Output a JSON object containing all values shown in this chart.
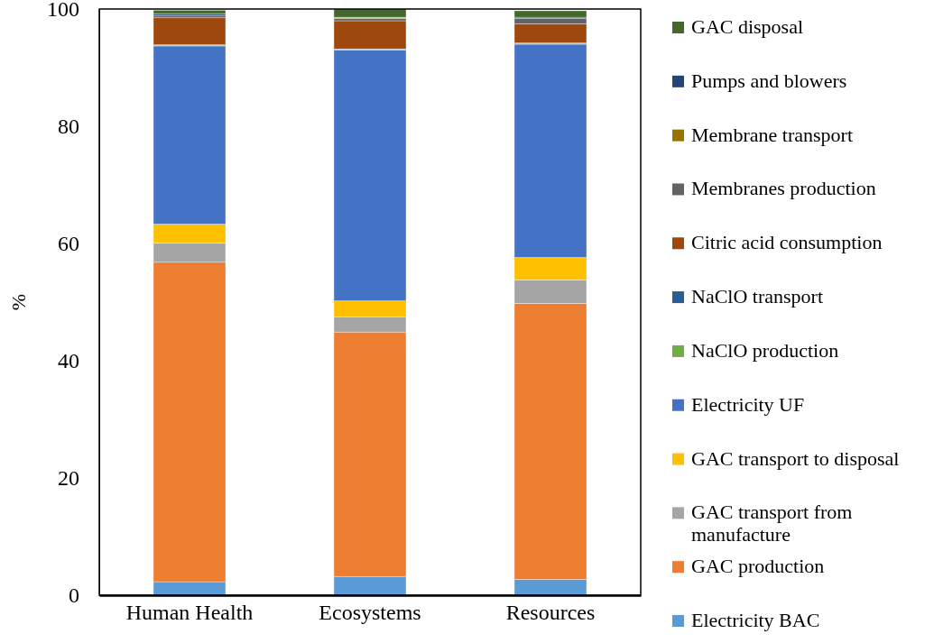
{
  "chart_data": {
    "type": "bar",
    "stacked": true,
    "ylabel": "%",
    "categories": [
      "Human Health",
      "Ecosystems",
      "Resources"
    ],
    "ylim": [
      0,
      100
    ],
    "yticks": [
      0,
      20,
      40,
      60,
      80,
      100
    ],
    "grid": false,
    "legend": "right",
    "series": [
      {
        "name": "Electricity BAC",
        "color": "#5b9bd5",
        "values": [
          2.3,
          3.2,
          2.7
        ]
      },
      {
        "name": "GAC production",
        "color": "#ed7d31",
        "values": [
          54.5,
          41.7,
          47.1
        ]
      },
      {
        "name": "GAC transport from manufacture",
        "color": "#a5a5a5",
        "values": [
          3.3,
          2.6,
          4.0
        ]
      },
      {
        "name": "GAC transport to disposal",
        "color": "#ffc000",
        "values": [
          3.2,
          2.7,
          3.8
        ]
      },
      {
        "name": "Electricity UF",
        "color": "#4472c4",
        "values": [
          30.4,
          42.8,
          36.4
        ]
      },
      {
        "name": "NaClO production",
        "color": "#70ad47",
        "values": [
          0.1,
          0.1,
          0.1
        ]
      },
      {
        "name": "NaClO transport",
        "color": "#255e91",
        "values": [
          0.1,
          0.1,
          0.1
        ]
      },
      {
        "name": "Citric acid consumption",
        "color": "#9e480e",
        "values": [
          4.6,
          4.8,
          3.3
        ]
      },
      {
        "name": "Membranes production",
        "color": "#636363",
        "values": [
          0.4,
          0.4,
          0.9
        ]
      },
      {
        "name": "Membrane transport",
        "color": "#997300",
        "values": [
          null,
          0.1,
          null
        ]
      },
      {
        "name": "Pumps and blowers",
        "color": "#264478",
        "values": [
          0.3,
          0.1,
          0.2
        ]
      },
      {
        "name": "GAC disposal",
        "color": "#43682b",
        "values": [
          0.6,
          1.4,
          1.1
        ]
      }
    ]
  }
}
